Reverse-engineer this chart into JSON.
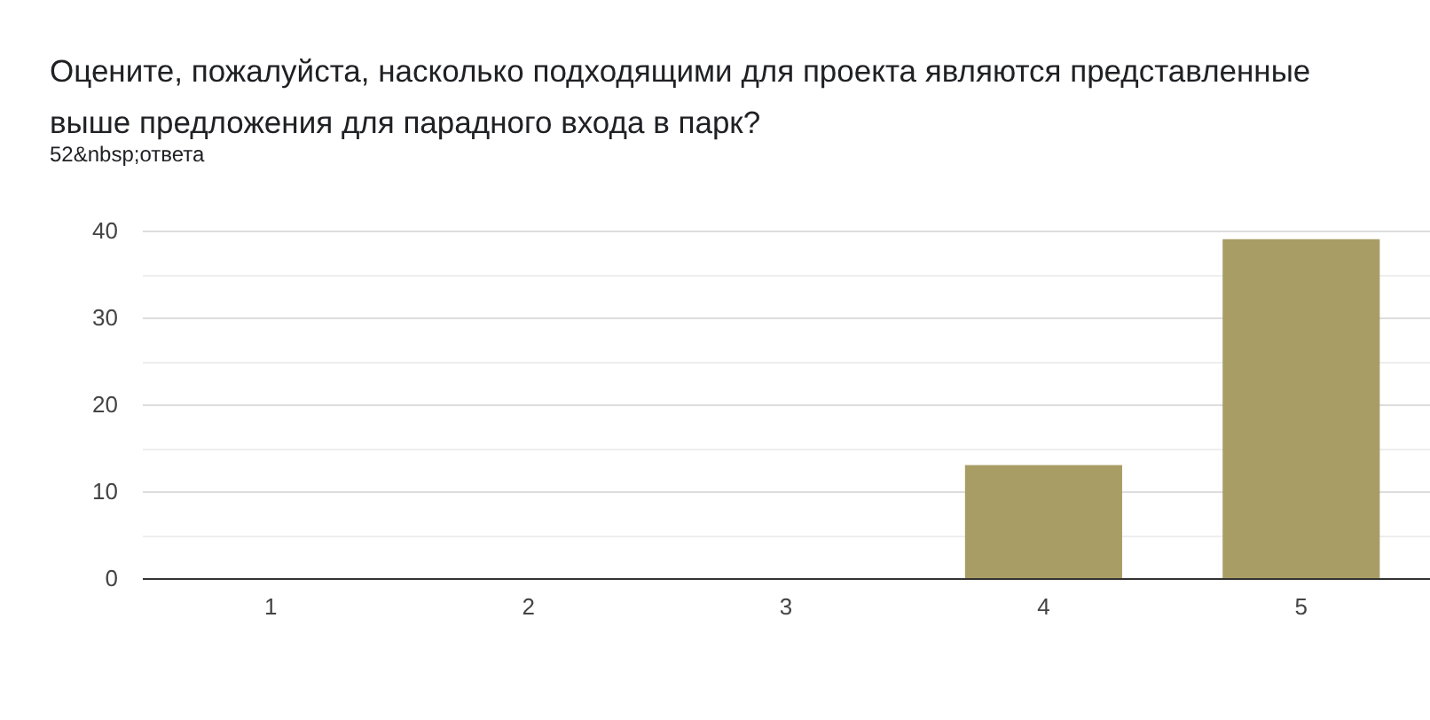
{
  "chart_data": {
    "type": "bar",
    "title": "Оцените, пожалуйста, насколько подходящими для проекта являются представленные выше предложения для парадного входа в парк?",
    "subtitle": "52&nbsp;ответа",
    "categories": [
      "1",
      "2",
      "3",
      "4",
      "5"
    ],
    "values": [
      0,
      0,
      0,
      13,
      39
    ],
    "color": "#a89d65",
    "ylim": [
      0,
      40
    ],
    "yticks": [
      0,
      {
        "value": 5,
        "label": null
      },
      10,
      {
        "value": 15,
        "label": null
      },
      20,
      {
        "value": 25,
        "label": null
      },
      30,
      {
        "value": 35,
        "label": null
      },
      40
    ],
    "grid": "y"
  }
}
